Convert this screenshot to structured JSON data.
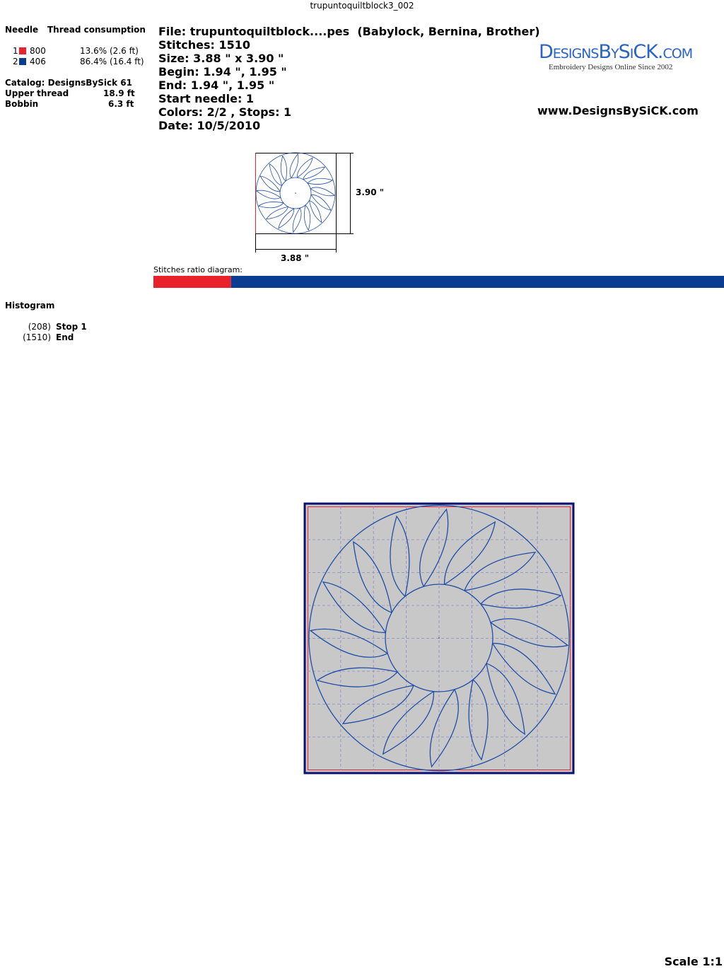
{
  "title": "trupuntoquiltblock3_002",
  "thread_table": {
    "headers": [
      "Needle",
      "Thread consumption"
    ],
    "threads": [
      {
        "needle": "1",
        "color": "#e8212b",
        "code": "800",
        "share": 13.6,
        "share_label": "13.6%",
        "length": "(2.6 ft)"
      },
      {
        "needle": "2",
        "color": "#0a3d91",
        "code": "406",
        "share": 86.4,
        "share_label": "86.4%",
        "length": "(16.4 ft)"
      }
    ]
  },
  "catalog": "Catalog: DesignsBySick 61",
  "upper_thread": {
    "label": "Upper thread",
    "value": "18.9 ft"
  },
  "bobbin": {
    "label": "Bobbin",
    "value": "6.3 ft"
  },
  "info": [
    "File: trupuntoquiltblock....pes  (Babylock, Bernina, Brother)",
    "Stitches: 1510",
    "Size: 3.88 \" x 3.90 \"",
    "Begin: 1.94 \", 1.95 \"",
    "End: 1.94 \", 1.95 \"",
    "Start needle: 1",
    "Colors: 2/2 , Stops: 1",
    "Date: 10/5/2010"
  ],
  "logo": {
    "name": "DesignsBySiCK.com",
    "tagline": "Embroidery Designs Online Since 2002"
  },
  "website": "www.DesignsBySiCK.com",
  "preview": {
    "height_label": "3.90 \"",
    "width_label": "3.88 \""
  },
  "ratio_diagram": {
    "label": "Stitches ratio diagram:"
  },
  "histogram": {
    "title": "Histogram",
    "entries": [
      {
        "count": "(208)",
        "label": "Stop 1"
      },
      {
        "count": "(1510)",
        "label": "End"
      }
    ]
  },
  "scale": "Scale 1:1"
}
